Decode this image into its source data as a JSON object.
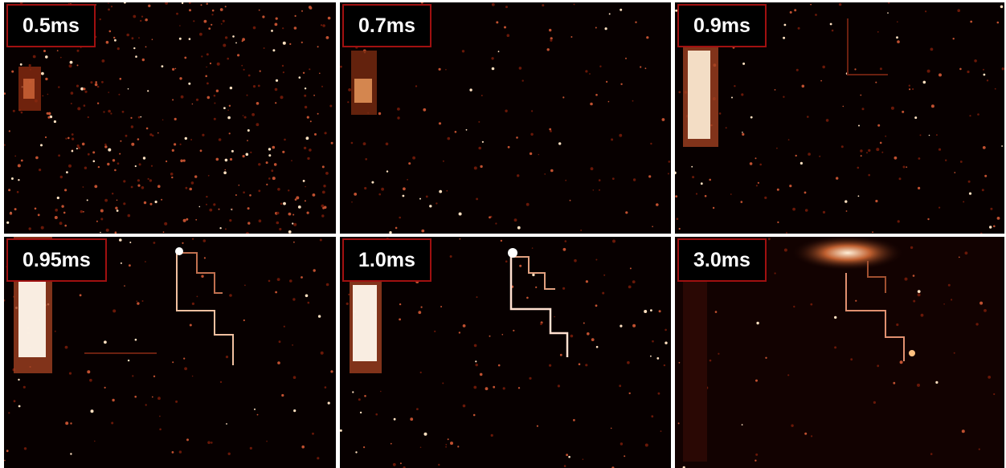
{
  "panels": [
    {
      "label": "0.5ms"
    },
    {
      "label": "0.7ms"
    },
    {
      "label": "0.9ms"
    },
    {
      "label": "0.95ms"
    },
    {
      "label": "1.0ms"
    },
    {
      "label": "3.0ms"
    }
  ]
}
